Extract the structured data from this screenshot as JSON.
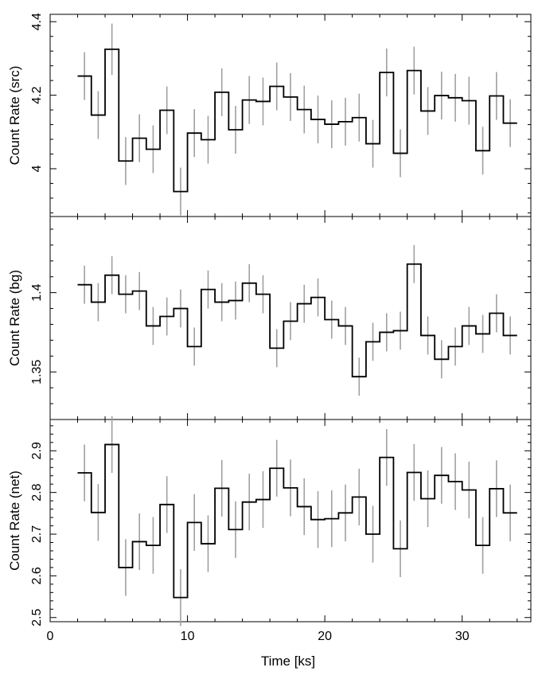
{
  "figure": {
    "xlabel": "Time [ks]"
  },
  "style": {
    "step_color": "#000000",
    "errorbar_color": "#a0a0a0",
    "frame_color": "#000000"
  },
  "chart_data": [
    {
      "type": "line",
      "step": true,
      "ylabel": "Count Rate (src)",
      "ylim": [
        3.87,
        4.42
      ],
      "yticks": [
        4,
        4.2,
        4.4
      ],
      "xlim": [
        0,
        35
      ],
      "xticks": [
        0,
        10,
        20,
        30
      ],
      "grid": false,
      "series": [
        {
          "x": [
            2.5,
            3.5,
            4.5,
            5.5,
            6.5,
            7.5,
            8.5,
            9.5,
            10.5,
            11.5,
            12.5,
            13.5,
            14.5,
            15.5,
            16.5,
            17.5,
            18.5,
            19.5,
            20.5,
            21.5,
            22.5,
            23.5,
            24.5,
            25.5,
            26.5,
            27.5,
            28.5,
            29.5,
            30.5,
            31.5,
            32.5,
            33.5
          ],
          "y": [
            4.252,
            4.146,
            4.325,
            4.021,
            4.083,
            4.053,
            4.159,
            3.938,
            4.097,
            4.079,
            4.208,
            4.106,
            4.187,
            4.183,
            4.224,
            4.195,
            4.161,
            4.134,
            4.121,
            4.128,
            4.139,
            4.068,
            4.262,
            4.042,
            4.267,
            4.157,
            4.199,
            4.193,
            4.185,
            4.049,
            4.198,
            4.124
          ],
          "yerr": [
            0.065,
            0.065,
            0.07,
            0.065,
            0.065,
            0.065,
            0.065,
            0.065,
            0.065,
            0.065,
            0.065,
            0.065,
            0.065,
            0.065,
            0.065,
            0.065,
            0.065,
            0.065,
            0.065,
            0.065,
            0.065,
            0.065,
            0.065,
            0.065,
            0.065,
            0.065,
            0.065,
            0.065,
            0.065,
            0.065,
            0.065,
            0.065
          ]
        }
      ]
    },
    {
      "type": "line",
      "step": true,
      "ylabel": "Count Rate (bg)",
      "ylim": [
        1.32,
        1.448
      ],
      "yticks": [
        1.35,
        1.4
      ],
      "xlim": [
        0,
        35
      ],
      "xticks": [
        0,
        10,
        20,
        30
      ],
      "grid": false,
      "series": [
        {
          "x": [
            2.5,
            3.5,
            4.5,
            5.5,
            6.5,
            7.5,
            8.5,
            9.5,
            10.5,
            11.5,
            12.5,
            13.5,
            14.5,
            15.5,
            16.5,
            17.5,
            18.5,
            19.5,
            20.5,
            21.5,
            22.5,
            23.5,
            24.5,
            25.5,
            26.5,
            27.5,
            28.5,
            29.5,
            30.5,
            31.5,
            32.5,
            33.5
          ],
          "y": [
            1.405,
            1.394,
            1.411,
            1.399,
            1.401,
            1.379,
            1.385,
            1.39,
            1.366,
            1.402,
            1.394,
            1.395,
            1.406,
            1.399,
            1.365,
            1.382,
            1.393,
            1.397,
            1.383,
            1.379,
            1.347,
            1.369,
            1.375,
            1.376,
            1.418,
            1.373,
            1.358,
            1.366,
            1.379,
            1.374,
            1.387,
            1.373
          ],
          "yerr": [
            0.012,
            0.012,
            0.012,
            0.012,
            0.012,
            0.012,
            0.012,
            0.012,
            0.012,
            0.012,
            0.012,
            0.012,
            0.012,
            0.012,
            0.012,
            0.012,
            0.012,
            0.012,
            0.012,
            0.012,
            0.012,
            0.012,
            0.012,
            0.012,
            0.012,
            0.012,
            0.012,
            0.012,
            0.012,
            0.012,
            0.012,
            0.012
          ]
        }
      ]
    },
    {
      "type": "line",
      "step": true,
      "ylabel": "Count Rate (net)",
      "ylim": [
        2.49,
        2.975
      ],
      "yticks": [
        2.5,
        2.6,
        2.7,
        2.8,
        2.9
      ],
      "xlim": [
        0,
        35
      ],
      "xticks": [
        0,
        10,
        20,
        30
      ],
      "grid": false,
      "series": [
        {
          "x": [
            2.5,
            3.5,
            4.5,
            5.5,
            6.5,
            7.5,
            8.5,
            9.5,
            10.5,
            11.5,
            12.5,
            13.5,
            14.5,
            15.5,
            16.5,
            17.5,
            18.5,
            19.5,
            20.5,
            21.5,
            22.5,
            23.5,
            24.5,
            25.5,
            26.5,
            27.5,
            28.5,
            29.5,
            30.5,
            31.5,
            32.5,
            33.5
          ],
          "y": [
            2.847,
            2.752,
            2.915,
            2.62,
            2.682,
            2.673,
            2.771,
            2.548,
            2.728,
            2.677,
            2.81,
            2.711,
            2.777,
            2.783,
            2.858,
            2.811,
            2.766,
            2.735,
            2.737,
            2.751,
            2.789,
            2.7,
            2.884,
            2.665,
            2.848,
            2.785,
            2.841,
            2.826,
            2.806,
            2.673,
            2.809,
            2.751
          ]
        }
      ]
    }
  ]
}
